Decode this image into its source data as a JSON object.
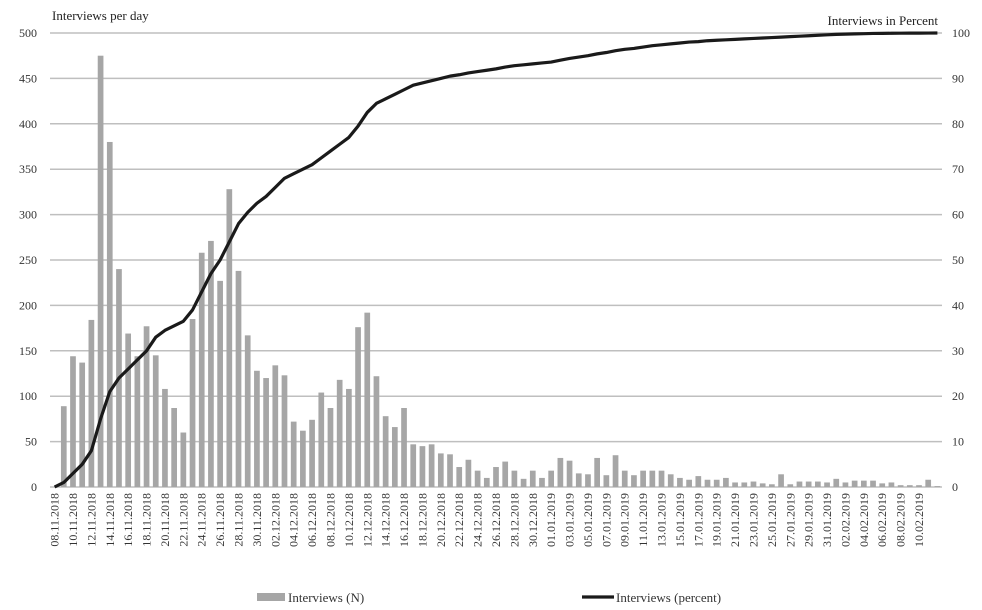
{
  "chart_data": {
    "type": "bar+line",
    "title": "",
    "ylabel_left": "Interviews per day",
    "ylabel_right": "Interviews in Percent",
    "ylim_left": [
      0,
      500
    ],
    "ylim_right": [
      0,
      100
    ],
    "yticks_left": [
      0,
      50,
      100,
      150,
      200,
      250,
      300,
      350,
      400,
      450,
      500
    ],
    "yticks_right": [
      0,
      10,
      20,
      30,
      40,
      50,
      60,
      70,
      80,
      90,
      100
    ],
    "grid": true,
    "legend_position": "bottom",
    "colors": {
      "bars": "#a6a6a6",
      "line": "#1a1a1a",
      "grid": "#bfbfbf"
    },
    "x_tick_labels": [
      "08.11.2018",
      "10.11.2018",
      "12.11.2018",
      "14.11.2018",
      "16.11.2018",
      "18.11.2018",
      "20.11.2018",
      "22.11.2018",
      "24.11.2018",
      "26.11.2018",
      "28.11.2018",
      "30.11.2018",
      "02.12.2018",
      "04.12.2018",
      "06.12.2018",
      "08.12.2018",
      "10.12.2018",
      "12.12.2018",
      "14.12.2018",
      "16.12.2018",
      "18.12.2018",
      "20.12.2018",
      "22.12.2018",
      "24.12.2018",
      "26.12.2018",
      "28.12.2018",
      "30.12.2018",
      "01.01.2019",
      "03.01.2019",
      "05.01.2019",
      "07.01.2019",
      "09.01.2019",
      "11.01.2019",
      "13.01.2019",
      "15.01.2019",
      "17.01.2019",
      "19.01.2019",
      "21.01.2019",
      "23.01.2019",
      "25.01.2019",
      "27.01.2019",
      "29.01.2019",
      "31.01.2019",
      "02.02.2019",
      "04.02.2019",
      "06.02.2019",
      "08.02.2019",
      "10.02.2019"
    ],
    "series": [
      {
        "name": "Interviews (N)",
        "type": "bar",
        "values": [
          0,
          89,
          144,
          137,
          184,
          475,
          380,
          240,
          169,
          144,
          177,
          145,
          108,
          87,
          60,
          185,
          258,
          271,
          227,
          328,
          238,
          167,
          128,
          120,
          134,
          123,
          72,
          62,
          74,
          104,
          87,
          118,
          108,
          176,
          192,
          122,
          78,
          66,
          87,
          47,
          45,
          47,
          37,
          36,
          22,
          30,
          18,
          10,
          22,
          28,
          18,
          9,
          18,
          10,
          18,
          32,
          29,
          15,
          14,
          32,
          13,
          35,
          18,
          13,
          18,
          18,
          18,
          14,
          10,
          8,
          12,
          8,
          8,
          10,
          5,
          5,
          6,
          4,
          3,
          14,
          3,
          6,
          6,
          6,
          5,
          9,
          5,
          7,
          7,
          7,
          4,
          5,
          2,
          2,
          2,
          8,
          1
        ]
      },
      {
        "name": "Interviews (percent)",
        "type": "line",
        "values": [
          0,
          1,
          3,
          5,
          8,
          15,
          21,
          24,
          26,
          28,
          30,
          33,
          34.5,
          35.5,
          36.5,
          39,
          43,
          47,
          50,
          54,
          58,
          60.5,
          62.5,
          64,
          66,
          68,
          69,
          70,
          71,
          72.5,
          74,
          75.5,
          77,
          79.5,
          82.5,
          84.5,
          85.5,
          86.5,
          87.5,
          88.5,
          89,
          89.5,
          90,
          90.5,
          90.8,
          91.2,
          91.5,
          91.8,
          92.1,
          92.5,
          92.8,
          93,
          93.2,
          93.4,
          93.6,
          94,
          94.4,
          94.7,
          95,
          95.4,
          95.7,
          96.1,
          96.4,
          96.6,
          96.9,
          97.2,
          97.4,
          97.6,
          97.8,
          98,
          98.1,
          98.3,
          98.4,
          98.5,
          98.6,
          98.7,
          98.8,
          98.9,
          99,
          99.1,
          99.2,
          99.3,
          99.4,
          99.5,
          99.6,
          99.7,
          99.75,
          99.8,
          99.85,
          99.9,
          99.92,
          99.94,
          99.96,
          99.97,
          99.98,
          99.99,
          100
        ]
      }
    ]
  }
}
